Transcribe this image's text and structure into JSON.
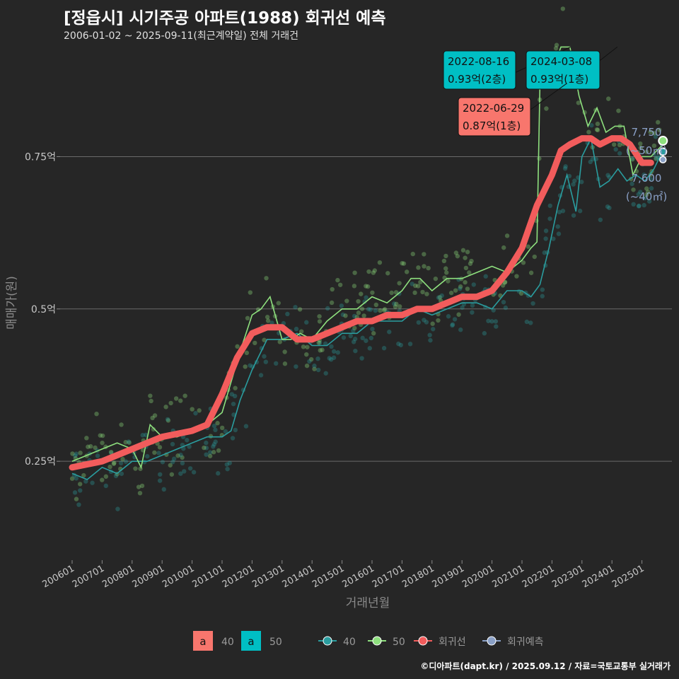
{
  "title": "[정읍시] 시기주공 아파트(1988) 회귀선 예측",
  "subtitle": "2006-01-02 ~ 2025-09-11(최근계약일) 전체 거래건",
  "footer": "©디아파트(dapt.kr) / 2025.09.12 / 자료=국토교통부 실거래가",
  "colors": {
    "background": "#262626",
    "area40": "#2a9d9f",
    "area50": "#8ee07e",
    "regression": "#f25c5c",
    "forecast": "#8aa0c6",
    "label_red": "#f8766d",
    "label_cyan": "#00bfc4"
  },
  "legend": {
    "label_items": [
      {
        "key": "a",
        "text": "40"
      },
      {
        "key": "a",
        "text": "50"
      }
    ],
    "line_items": [
      {
        "text": "40"
      },
      {
        "text": "50"
      },
      {
        "text": "회귀선"
      },
      {
        "text": "회귀예측"
      }
    ]
  },
  "chart_data": {
    "type": "line",
    "xlabel": "거래년월",
    "ylabel": "매매가(원)",
    "x_ticks": [
      "200601",
      "200701",
      "200801",
      "200901",
      "201001",
      "201101",
      "201201",
      "201301",
      "201401",
      "201501",
      "201601",
      "201701",
      "201801",
      "201901",
      "202001",
      "202101",
      "202201",
      "202301",
      "202401",
      "202501"
    ],
    "y_ticks": [
      {
        "value": 0.25,
        "label": "0.25억"
      },
      {
        "value": 0.5,
        "label": "0.5억"
      },
      {
        "value": 0.75,
        "label": "0.75억"
      }
    ],
    "ylim": [
      0.09,
      0.92
    ],
    "xlim": [
      2005.6,
      2026.0
    ],
    "series": [
      {
        "name": "40",
        "type": "line",
        "x": [
          2006.0,
          2006.5,
          2007.0,
          2007.5,
          2008.0,
          2008.5,
          2009.0,
          2009.5,
          2010.0,
          2010.5,
          2011.0,
          2011.3,
          2011.6,
          2012.0,
          2012.5,
          2013.0,
          2013.5,
          2014.0,
          2014.5,
          2015.0,
          2015.5,
          2016.0,
          2016.5,
          2017.0,
          2017.5,
          2018.0,
          2018.5,
          2019.0,
          2019.5,
          2020.0,
          2020.5,
          2021.0,
          2021.3,
          2021.6,
          2021.9,
          2022.2,
          2022.5,
          2022.8,
          2023.0,
          2023.3,
          2023.6,
          2023.9,
          2024.2,
          2024.5,
          2024.8,
          2025.1,
          2025.4,
          2025.7
        ],
        "y": [
          0.23,
          0.22,
          0.24,
          0.23,
          0.25,
          0.25,
          0.26,
          0.27,
          0.28,
          0.29,
          0.29,
          0.3,
          0.35,
          0.4,
          0.45,
          0.45,
          0.46,
          0.44,
          0.44,
          0.46,
          0.46,
          0.48,
          0.48,
          0.48,
          0.5,
          0.49,
          0.5,
          0.51,
          0.51,
          0.5,
          0.53,
          0.53,
          0.52,
          0.54,
          0.6,
          0.67,
          0.72,
          0.66,
          0.75,
          0.78,
          0.7,
          0.71,
          0.73,
          0.71,
          0.72,
          0.71,
          0.73,
          0.76
        ]
      },
      {
        "name": "50",
        "type": "line",
        "x": [
          2006.0,
          2006.5,
          2007.0,
          2007.5,
          2008.0,
          2008.3,
          2008.6,
          2009.0,
          2009.5,
          2010.0,
          2010.5,
          2011.0,
          2011.3,
          2011.6,
          2012.0,
          2012.3,
          2012.6,
          2013.0,
          2013.3,
          2013.6,
          2014.0,
          2014.5,
          2015.0,
          2015.5,
          2016.0,
          2016.5,
          2017.0,
          2017.3,
          2017.6,
          2018.0,
          2018.5,
          2019.0,
          2019.5,
          2020.0,
          2020.5,
          2021.0,
          2021.3,
          2021.5,
          2021.6,
          2022.0,
          2022.3,
          2022.6,
          2022.9,
          2023.2,
          2023.5,
          2023.8,
          2024.1,
          2024.4,
          2024.7,
          2025.0,
          2025.3,
          2025.7
        ],
        "y": [
          0.25,
          0.26,
          0.27,
          0.28,
          0.27,
          0.24,
          0.31,
          0.29,
          0.29,
          0.3,
          0.31,
          0.33,
          0.38,
          0.43,
          0.49,
          0.5,
          0.52,
          0.45,
          0.45,
          0.46,
          0.45,
          0.48,
          0.5,
          0.5,
          0.52,
          0.51,
          0.53,
          0.55,
          0.55,
          0.53,
          0.55,
          0.55,
          0.56,
          0.57,
          0.56,
          0.58,
          0.6,
          0.61,
          0.87,
          0.89,
          0.93,
          0.93,
          0.85,
          0.8,
          0.83,
          0.79,
          0.8,
          0.8,
          0.72,
          0.75,
          0.75,
          0.77
        ]
      },
      {
        "name": "회귀선",
        "type": "line",
        "x": [
          2006.0,
          2007.0,
          2008.0,
          2009.0,
          2010.0,
          2010.5,
          2011.0,
          2011.5,
          2012.0,
          2012.5,
          2013.0,
          2013.5,
          2014.0,
          2014.5,
          2015.0,
          2015.5,
          2016.0,
          2016.5,
          2017.0,
          2017.5,
          2018.0,
          2018.5,
          2019.0,
          2019.5,
          2020.0,
          2020.5,
          2021.0,
          2021.5,
          2022.0,
          2022.3,
          2022.6,
          2023.0,
          2023.3,
          2023.6,
          2024.0,
          2024.3,
          2024.6,
          2025.0,
          2025.3
        ],
        "y": [
          0.24,
          0.25,
          0.27,
          0.29,
          0.3,
          0.31,
          0.36,
          0.42,
          0.46,
          0.47,
          0.47,
          0.45,
          0.45,
          0.46,
          0.47,
          0.48,
          0.48,
          0.49,
          0.49,
          0.5,
          0.5,
          0.51,
          0.52,
          0.52,
          0.53,
          0.56,
          0.6,
          0.67,
          0.72,
          0.76,
          0.77,
          0.78,
          0.78,
          0.77,
          0.78,
          0.78,
          0.77,
          0.74,
          0.74
        ]
      },
      {
        "name": "회귀예측",
        "type": "point",
        "x": [
          2025.7
        ],
        "y": [
          0.745
        ]
      }
    ],
    "annotations": [
      {
        "date": "2022-08-16",
        "value": "0.93억(2층)",
        "color": "cyan"
      },
      {
        "date": "2024-03-08",
        "value": "0.93억(1층)",
        "color": "cyan"
      },
      {
        "date": "2022-06-29",
        "value": "0.87억(1층)",
        "color": "red"
      }
    ],
    "end_labels": [
      {
        "price": "7,750",
        "area": "(~50㎡)"
      },
      {
        "price": "7,600",
        "area": "(~40㎡)"
      }
    ]
  }
}
